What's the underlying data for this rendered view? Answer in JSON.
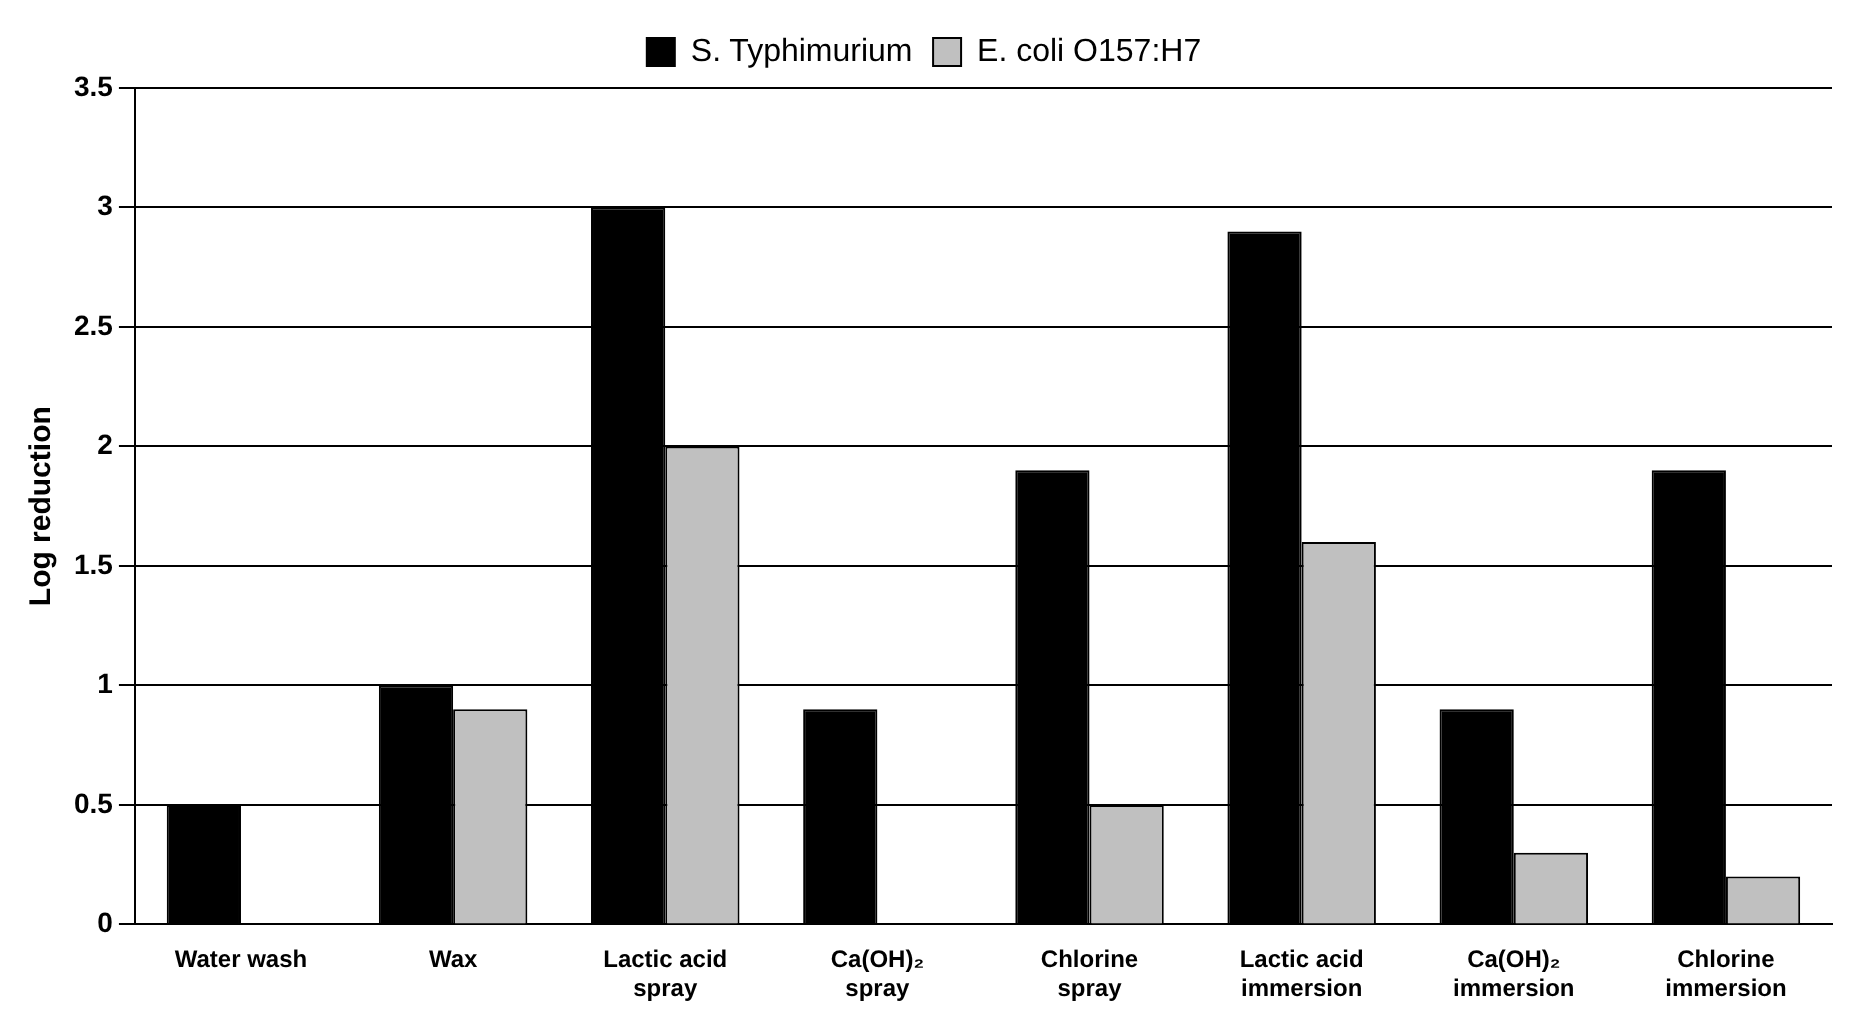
{
  "chart_data": {
    "type": "bar",
    "ylabel": "Log reduction",
    "categories": [
      "Water wash",
      "Wax",
      "Lactic acid spray",
      "Ca(OH)₂ spray",
      "Chlorine spray",
      "Lactic acid immersion",
      "Ca(OH)₂ immersion",
      "Chlorine immersion"
    ],
    "series": [
      {
        "name": "S. Typhimurium",
        "color": "#000000",
        "values": [
          0.5,
          1.0,
          3.0,
          0.9,
          1.9,
          2.9,
          0.9,
          1.9
        ]
      },
      {
        "name": "E. coli O157:H7",
        "color": "#c0c0c0",
        "values": [
          null,
          0.9,
          2.0,
          null,
          0.5,
          1.6,
          0.3,
          0.2
        ]
      }
    ],
    "ylim": [
      0,
      3.5
    ],
    "yticks": [
      0,
      0.5,
      1,
      1.5,
      2,
      2.5,
      3,
      3.5
    ],
    "grid": "y",
    "legend": "top"
  }
}
